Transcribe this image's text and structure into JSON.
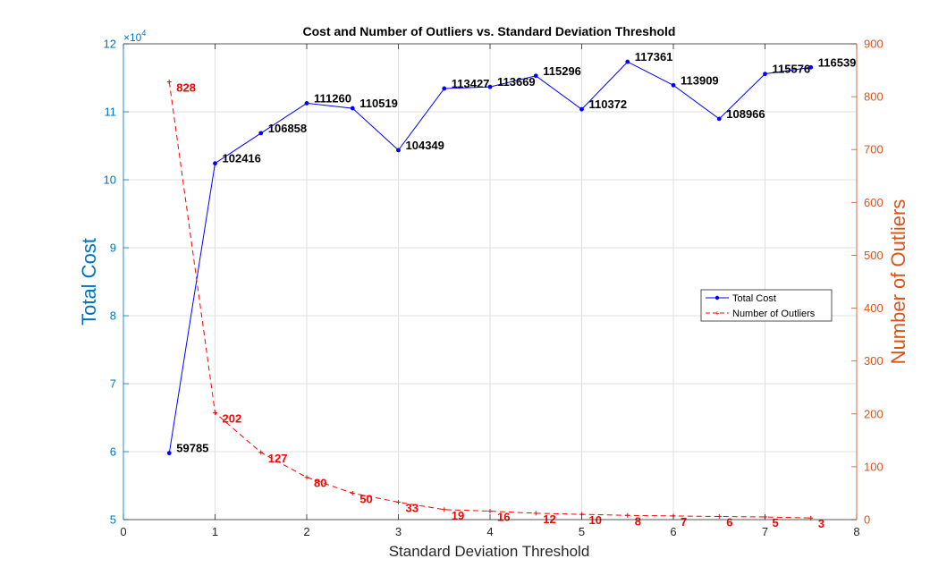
{
  "chart_data": {
    "type": "line",
    "title": "Cost and Number of Outliers vs. Standard Deviation Threshold",
    "xlabel": "Standard Deviation Threshold",
    "ylabel_left": "Total Cost",
    "ylabel_right": "Number of Outliers",
    "left_exponent_label": "×10",
    "left_exponent_power": "4",
    "xlim": [
      0,
      8
    ],
    "ylim_left": [
      50000,
      120000
    ],
    "ylim_right": [
      0,
      900
    ],
    "x_ticks": [
      "0",
      "1",
      "2",
      "3",
      "4",
      "5",
      "6",
      "7",
      "8"
    ],
    "left_ticks": [
      "5",
      "6",
      "7",
      "8",
      "9",
      "10",
      "11",
      "12"
    ],
    "right_ticks": [
      "0",
      "100",
      "200",
      "300",
      "400",
      "500",
      "600",
      "700",
      "800",
      "900"
    ],
    "grid": true,
    "legend_position": "right",
    "x": [
      0.5,
      1.0,
      1.5,
      2.0,
      2.5,
      3.0,
      3.5,
      4.0,
      4.5,
      5.0,
      5.5,
      6.0,
      6.5,
      7.0,
      7.5
    ],
    "series": [
      {
        "name": "Total Cost",
        "axis": "left",
        "color": "#0000ff",
        "style": "solid",
        "values": [
          59785,
          102416,
          106858,
          111260,
          110519,
          104349,
          113427,
          113669,
          115296,
          110372,
          117361,
          113909,
          108966,
          115576,
          116539
        ],
        "labels": [
          "59785",
          "102416",
          "106858",
          "111260",
          "110519",
          "104349",
          "113427",
          "113669",
          "115296",
          "110372",
          "117361",
          "113909",
          "108966",
          "115576",
          "116539"
        ]
      },
      {
        "name": "Number of Outliers",
        "axis": "right",
        "color": "#ff0000",
        "style": "dashed",
        "values": [
          828,
          202,
          127,
          80,
          50,
          33,
          19,
          16,
          12,
          10,
          8,
          7,
          6,
          5,
          3
        ],
        "labels": [
          "828",
          "202",
          "127",
          "80",
          "50",
          "33",
          "19",
          "16",
          "12",
          "10",
          "8",
          "7",
          "6",
          "5",
          "3"
        ]
      }
    ],
    "colors": {
      "left_axis": "#0072bd",
      "right_axis": "#d95319",
      "grid": "#dfdfdf",
      "axis_box": "#262626"
    }
  }
}
